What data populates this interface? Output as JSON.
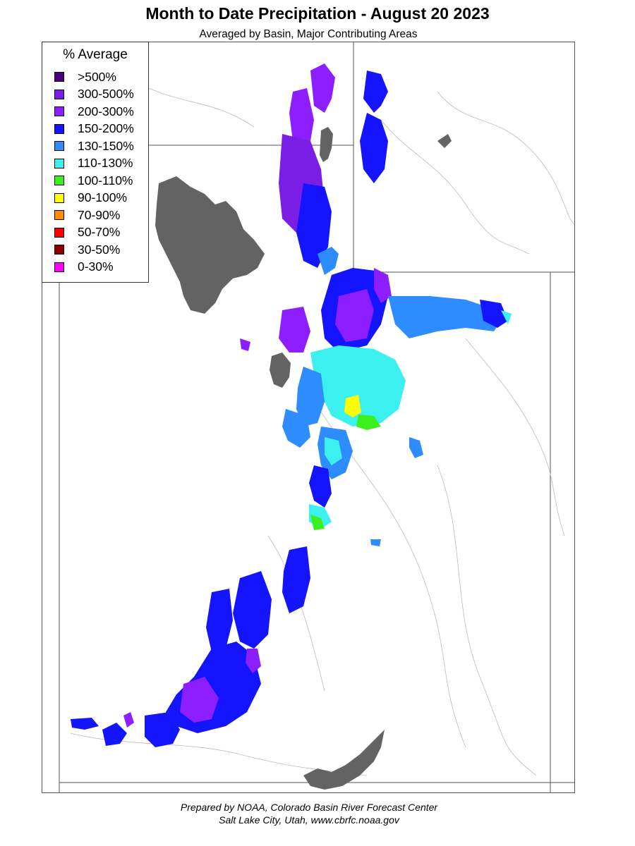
{
  "title": "Month to Date Precipitation - August 20 2023",
  "subtitle": "Averaged by Basin, Major Contributing Areas",
  "legend": {
    "title": "% Average",
    "items": [
      {
        "label": ">500%",
        "color": "#4b0082"
      },
      {
        "label": "300-500%",
        "color": "#7a1ee6"
      },
      {
        "label": "200-300%",
        "color": "#8c1eff"
      },
      {
        "label": "150-200%",
        "color": "#1414ff"
      },
      {
        "label": "130-150%",
        "color": "#2d8cff"
      },
      {
        "label": "110-130%",
        "color": "#3cf0f0"
      },
      {
        "label": "100-110%",
        "color": "#3cf01e"
      },
      {
        "label": "90-100%",
        "color": "#ffff00"
      },
      {
        "label": "70-90%",
        "color": "#ff8c00"
      },
      {
        "label": "50-70%",
        "color": "#ff0000"
      },
      {
        "label": "30-50%",
        "color": "#8b0000"
      },
      {
        "label": "0-30%",
        "color": "#ff00ff"
      }
    ]
  },
  "map": {
    "no_data_color": "#636363",
    "boundary_color": "#555555"
  },
  "footer": {
    "line1": "Prepared by NOAA, Colorado Basin River Forecast Center",
    "line2": "Salt Lake City, Utah, www.cbrfc.noaa.gov"
  }
}
